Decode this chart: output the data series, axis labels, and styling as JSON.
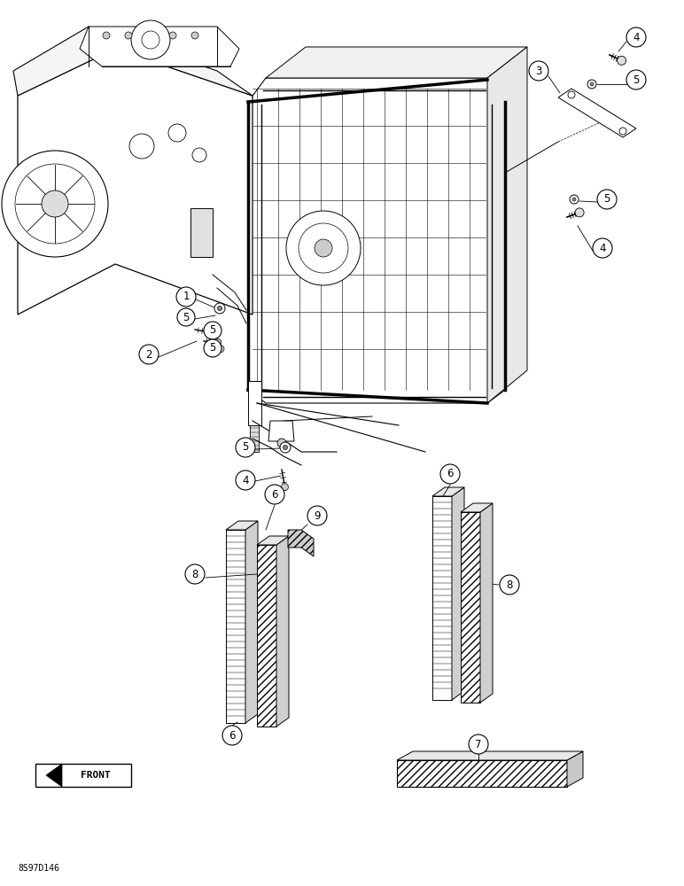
{
  "bg_color": "#ffffff",
  "fig_width": 7.72,
  "fig_height": 10.0,
  "watermark": "8S97D146",
  "front_arrow_text": "FRONT"
}
